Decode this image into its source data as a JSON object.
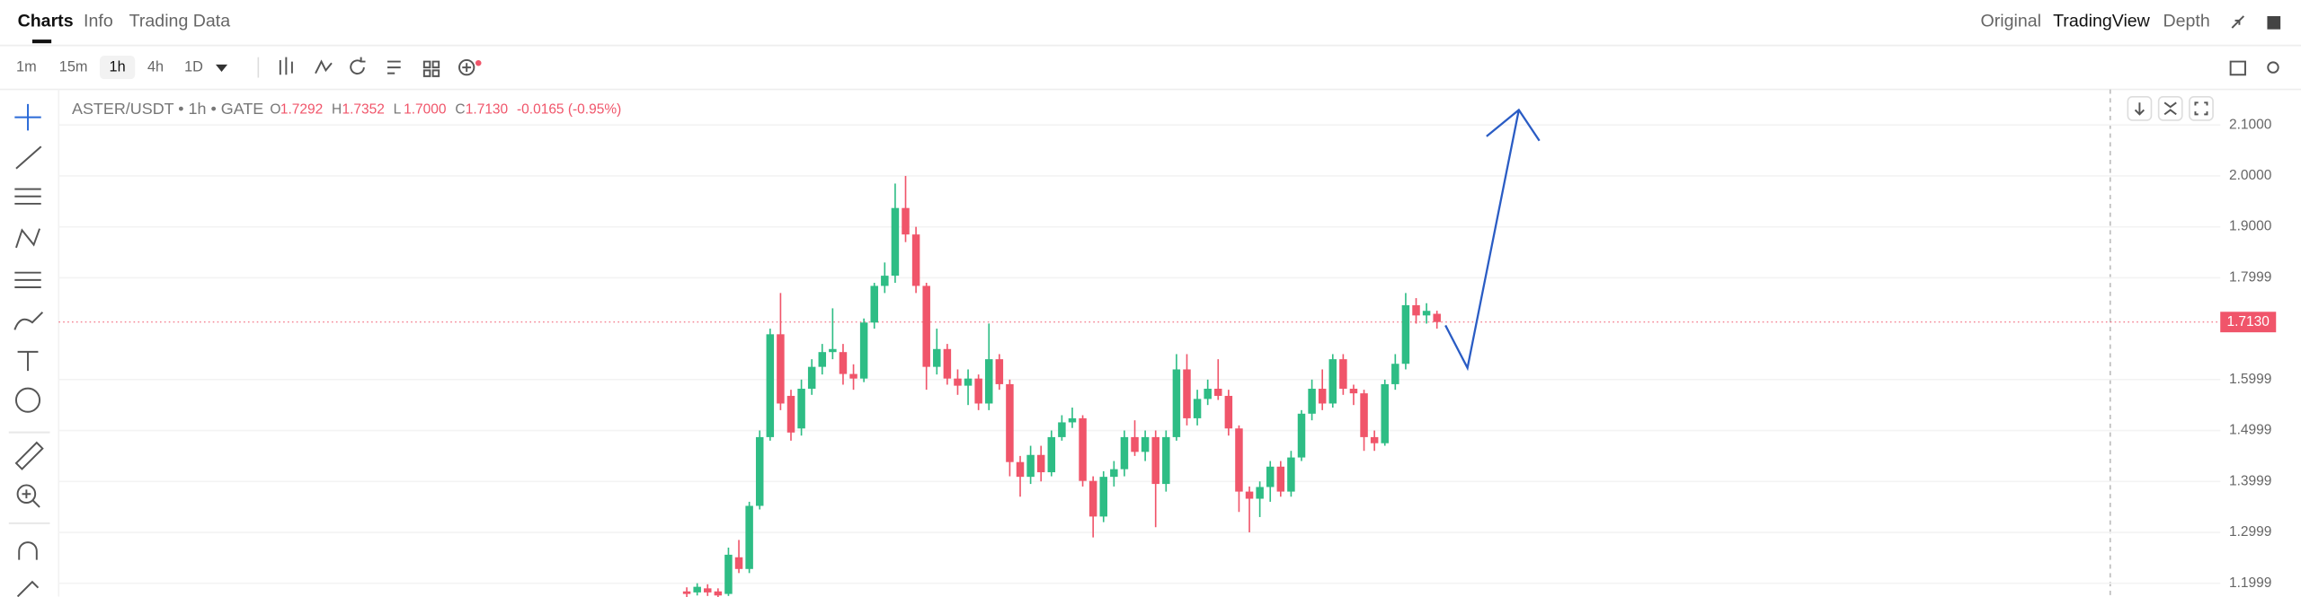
{
  "tabs": [
    "Charts",
    "Info",
    "Trading Data"
  ],
  "view_modes": [
    "Original",
    "TradingView",
    "Depth"
  ],
  "intervals": [
    "1m",
    "15m",
    "1h",
    "4h",
    "1D"
  ],
  "chart_data": {
    "type": "candlestick",
    "symbol_label": "ASTER/USDT • 1h • GATE",
    "ohlc_legend": [
      {
        "key": "O",
        "value": "1.7292"
      },
      {
        "key": "H",
        "value": "1.7352"
      },
      {
        "key": "L",
        "value": "1.7000"
      },
      {
        "key": "C",
        "value": "1.7130"
      }
    ],
    "change": "-0.0165 (-0.95%)",
    "open": [
      1.184,
      1.182,
      1.19,
      1.184,
      1.179,
      1.251,
      1.228,
      1.352,
      1.487,
      1.689,
      1.568,
      1.504,
      1.582,
      1.625,
      1.654,
      1.654,
      1.611,
      1.602,
      1.712,
      1.784,
      1.804,
      1.937,
      1.885,
      1.784,
      1.625,
      1.66,
      1.602,
      1.588,
      1.602,
      1.553,
      1.64,
      1.591,
      1.438,
      1.409,
      1.452,
      1.418,
      1.487,
      1.516,
      1.524,
      1.401,
      1.331,
      1.409,
      1.424,
      1.487,
      1.458,
      1.487,
      1.395,
      1.487,
      1.62,
      1.524,
      1.562,
      1.582,
      1.568,
      1.504,
      1.38,
      1.366,
      1.389,
      1.429,
      1.38,
      1.447,
      1.533,
      1.582,
      1.553,
      1.64,
      1.582,
      1.573,
      1.487,
      1.475,
      1.591,
      1.631,
      1.746,
      1.726,
      1.7292
    ],
    "high": [
      1.192,
      1.2,
      1.198,
      1.19,
      1.27,
      1.285,
      1.36,
      1.5,
      1.7,
      1.77,
      1.58,
      1.6,
      1.64,
      1.67,
      1.74,
      1.67,
      1.63,
      1.72,
      1.79,
      1.83,
      1.985,
      2.0,
      1.9,
      1.79,
      1.7,
      1.67,
      1.62,
      1.62,
      1.61,
      1.71,
      1.65,
      1.6,
      1.45,
      1.47,
      1.47,
      1.5,
      1.53,
      1.545,
      1.53,
      1.41,
      1.42,
      1.44,
      1.5,
      1.52,
      1.5,
      1.5,
      1.5,
      1.65,
      1.65,
      1.58,
      1.6,
      1.64,
      1.58,
      1.51,
      1.39,
      1.4,
      1.44,
      1.44,
      1.46,
      1.54,
      1.6,
      1.62,
      1.65,
      1.65,
      1.59,
      1.58,
      1.5,
      1.6,
      1.65,
      1.77,
      1.76,
      1.75,
      1.7352
    ],
    "low": [
      1.172,
      1.176,
      1.175,
      1.173,
      1.175,
      1.22,
      1.22,
      1.345,
      1.48,
      1.54,
      1.48,
      1.49,
      1.57,
      1.61,
      1.64,
      1.59,
      1.58,
      1.595,
      1.7,
      1.77,
      1.79,
      1.87,
      1.77,
      1.58,
      1.61,
      1.59,
      1.57,
      1.55,
      1.54,
      1.54,
      1.58,
      1.41,
      1.37,
      1.395,
      1.4,
      1.41,
      1.48,
      1.505,
      1.39,
      1.29,
      1.32,
      1.39,
      1.41,
      1.45,
      1.44,
      1.31,
      1.38,
      1.48,
      1.51,
      1.51,
      1.55,
      1.56,
      1.49,
      1.34,
      1.3,
      1.33,
      1.36,
      1.37,
      1.37,
      1.44,
      1.52,
      1.54,
      1.545,
      1.57,
      1.55,
      1.46,
      1.46,
      1.47,
      1.58,
      1.62,
      1.71,
      1.71,
      1.7
    ],
    "close": [
      1.179,
      1.193,
      1.182,
      1.176,
      1.256,
      1.228,
      1.352,
      1.487,
      1.689,
      1.553,
      1.496,
      1.582,
      1.625,
      1.654,
      1.66,
      1.611,
      1.602,
      1.712,
      1.784,
      1.804,
      1.937,
      1.885,
      1.784,
      1.625,
      1.66,
      1.602,
      1.588,
      1.602,
      1.553,
      1.64,
      1.591,
      1.438,
      1.409,
      1.452,
      1.418,
      1.487,
      1.516,
      1.524,
      1.401,
      1.331,
      1.409,
      1.424,
      1.487,
      1.458,
      1.487,
      1.395,
      1.487,
      1.62,
      1.524,
      1.562,
      1.582,
      1.568,
      1.504,
      1.38,
      1.366,
      1.389,
      1.429,
      1.38,
      1.447,
      1.533,
      1.582,
      1.553,
      1.64,
      1.582,
      1.573,
      1.487,
      1.475,
      1.591,
      1.631,
      1.746,
      1.726,
      1.735,
      1.713
    ],
    "up_color": "#2ebd85",
    "down_color": "#f0556a",
    "ylim": [
      1.173,
      2.167
    ],
    "yticks": [
      {
        "value": 2.1,
        "label": "2.1000"
      },
      {
        "value": 2.0,
        "label": "2.0000"
      },
      {
        "value": 1.9,
        "label": "1.9000"
      },
      1.7999,
      1.5999,
      1.4999,
      1.3999,
      1.2999,
      1.1999
    ],
    "last_price": {
      "value": 1.713,
      "label": "1.7130"
    },
    "grid": true
  }
}
